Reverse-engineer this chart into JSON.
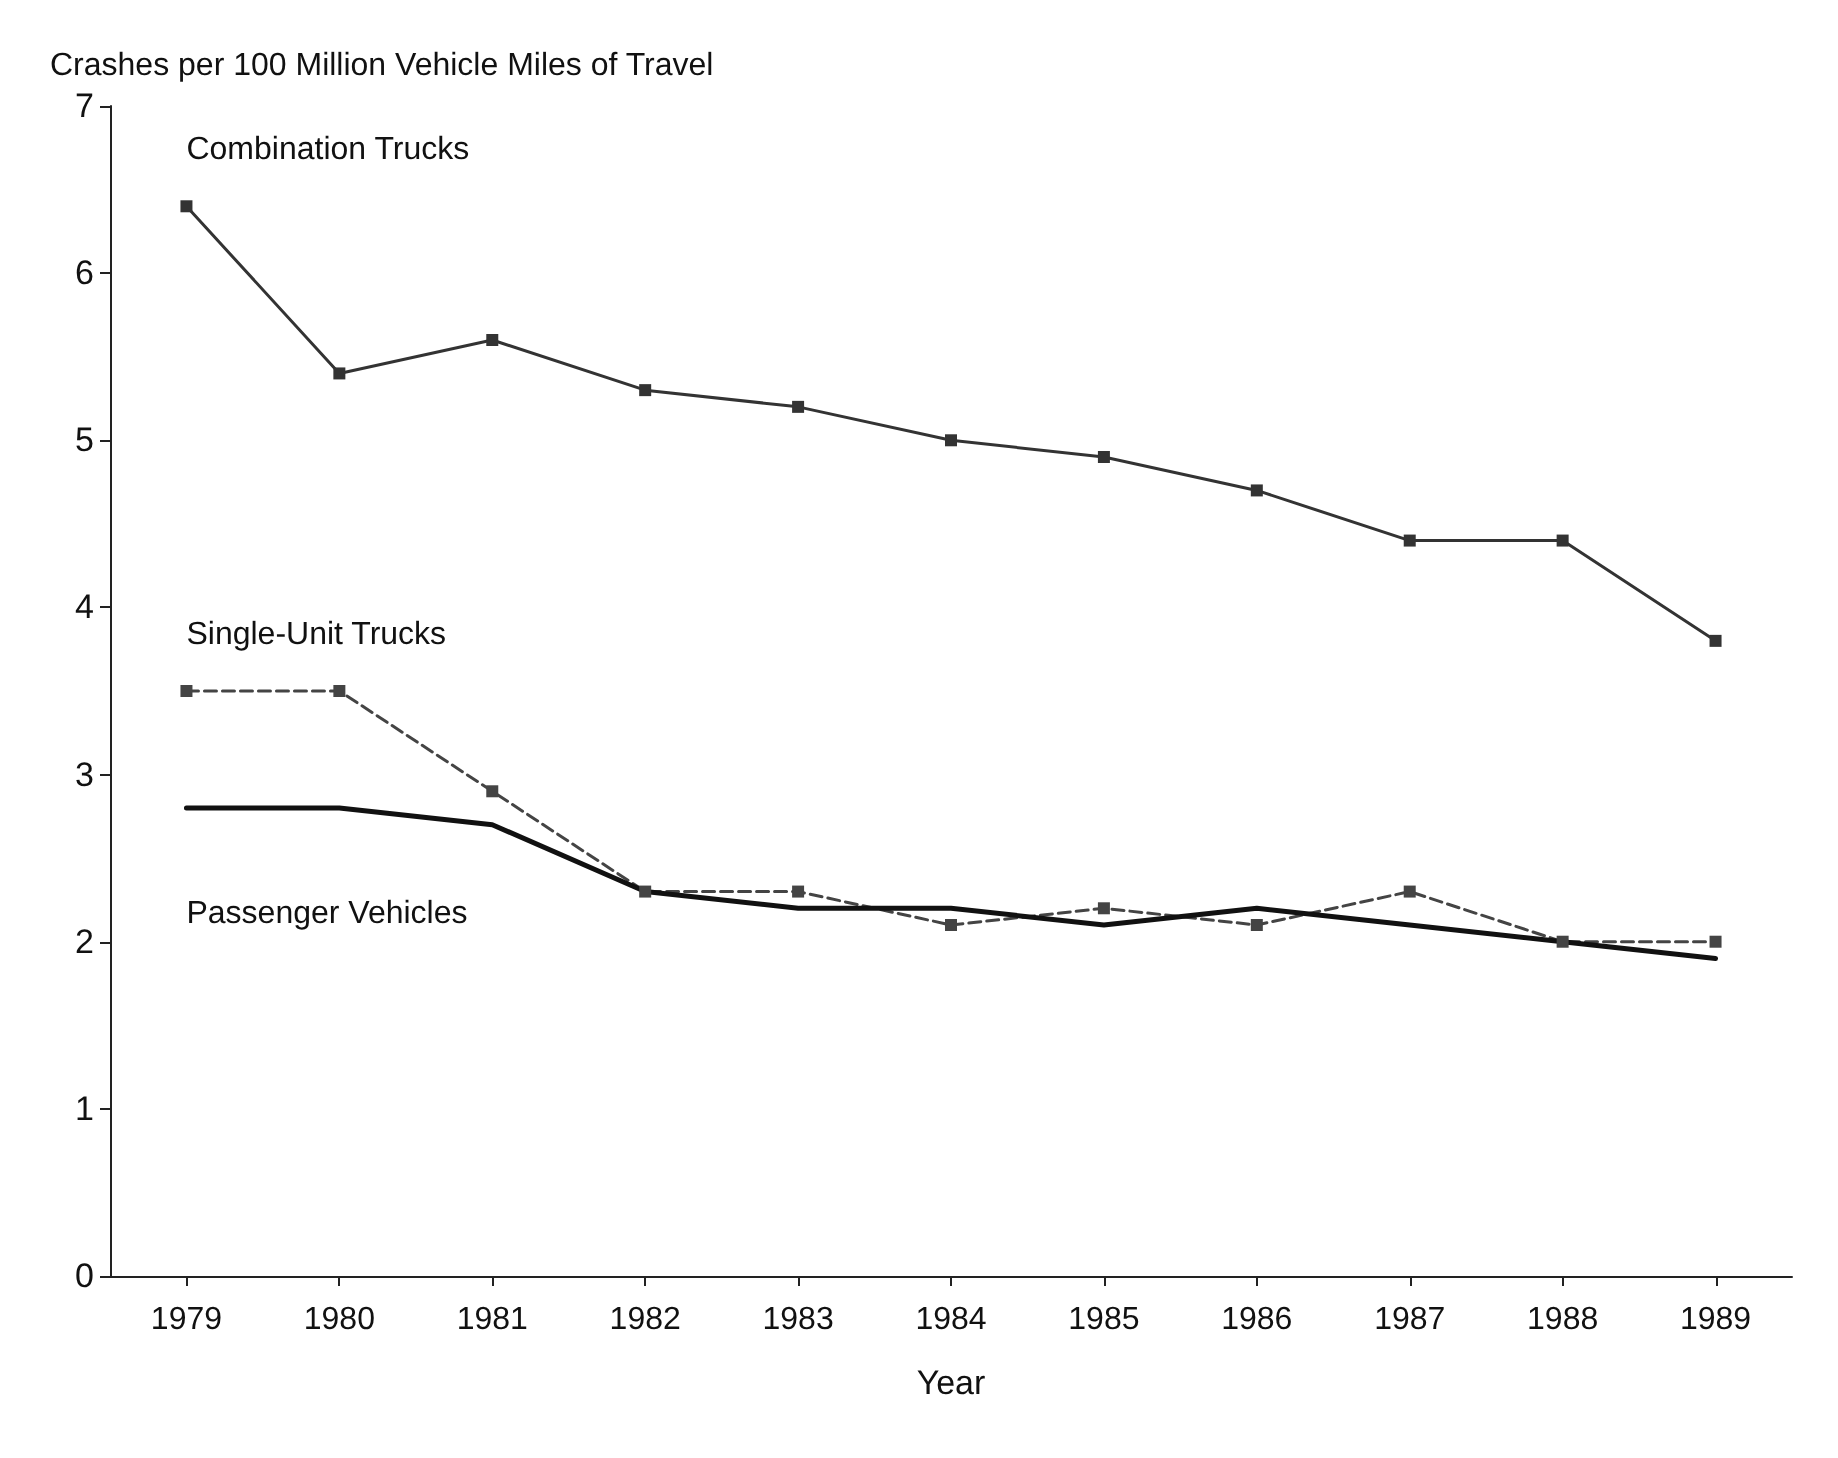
{
  "chart_data": {
    "type": "line",
    "ylabel": "Crashes per 100 Million Vehicle Miles of Travel",
    "xlabel": "Year",
    "categories": [
      "1979",
      "1980",
      "1981",
      "1982",
      "1983",
      "1984",
      "1985",
      "1986",
      "1987",
      "1988",
      "1989"
    ],
    "series": [
      {
        "name": "Combination Trucks",
        "color": "#333333",
        "marker": "square",
        "line_style": "solid",
        "values": [
          6.4,
          5.4,
          5.6,
          5.3,
          5.2,
          5.0,
          4.9,
          4.7,
          4.4,
          4.4,
          3.8
        ]
      },
      {
        "name": "Single-Unit Trucks",
        "color": "#444444",
        "marker": "square",
        "line_style": "dashed",
        "values": [
          3.5,
          3.5,
          2.9,
          2.3,
          2.3,
          2.1,
          2.2,
          2.1,
          2.3,
          2.0,
          2.0
        ]
      },
      {
        "name": "Passenger Vehicles",
        "color": "#111111",
        "marker": "none",
        "line_style": "solid",
        "values": [
          2.8,
          2.8,
          2.7,
          2.3,
          2.2,
          2.2,
          2.1,
          2.2,
          2.1,
          2.0,
          1.9
        ]
      }
    ],
    "ylim": [
      0,
      7
    ],
    "yticks": [
      0,
      1,
      2,
      3,
      4,
      5,
      6,
      7
    ],
    "grid": false,
    "legend": false
  }
}
